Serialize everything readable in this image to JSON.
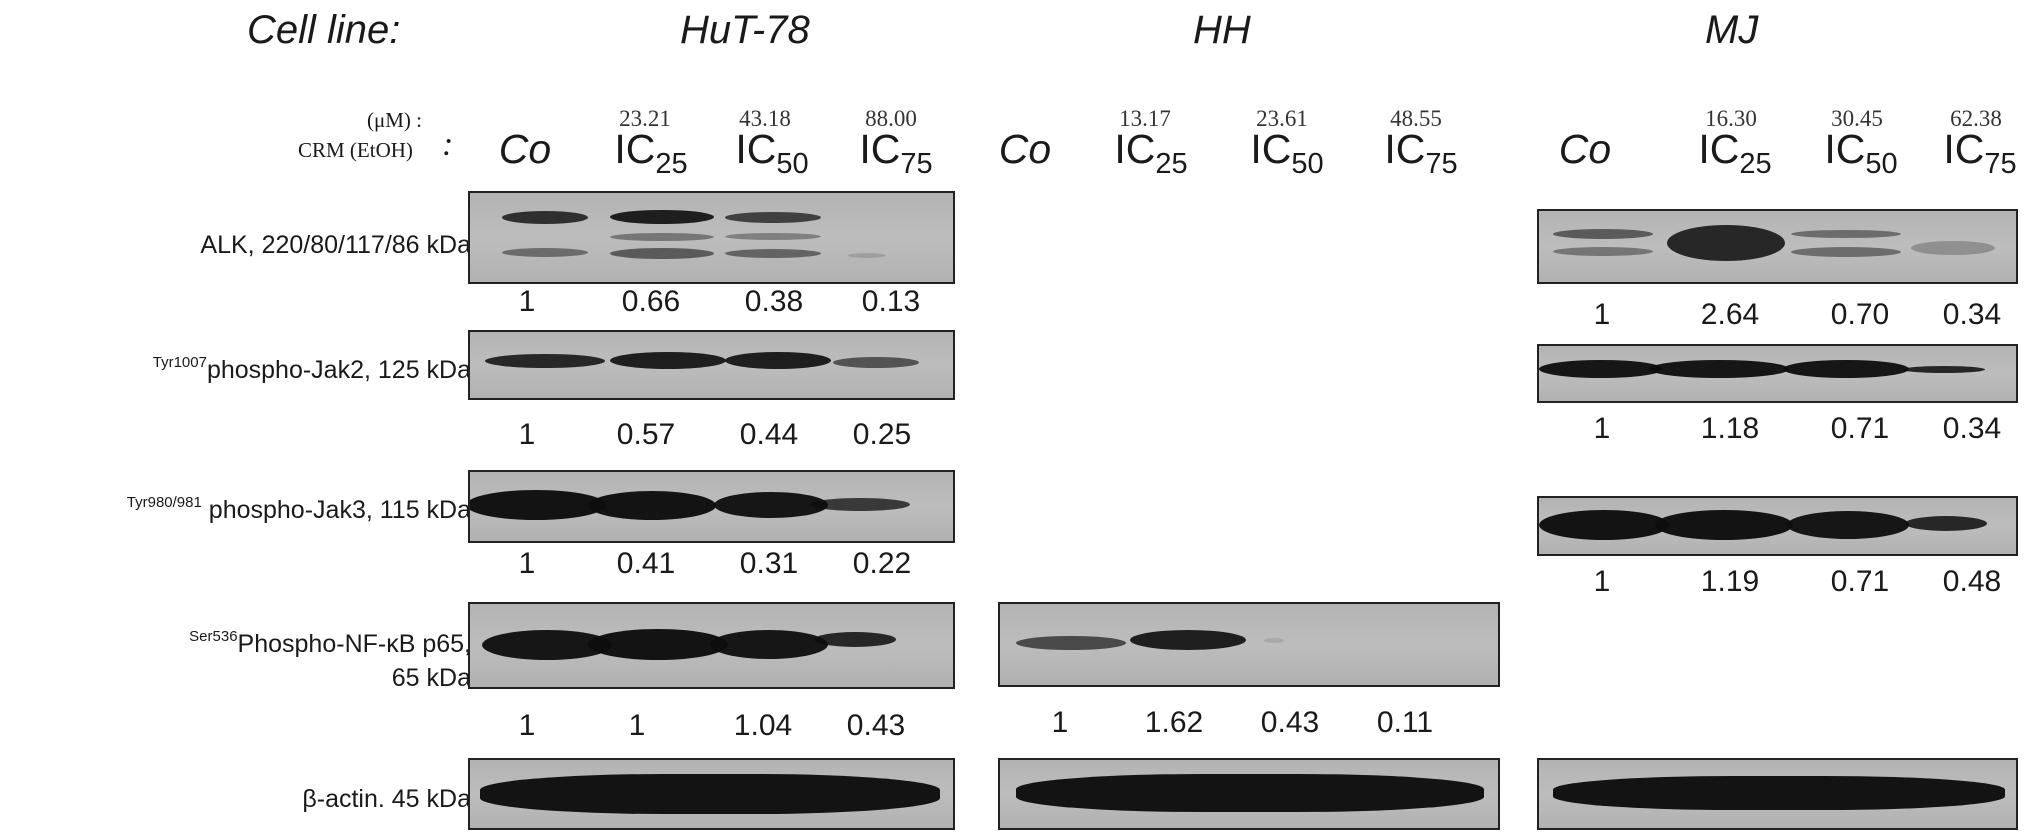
{
  "cell_line_label": "Cell line:",
  "units_label": "(μM) :",
  "treatment_label": "CRM (EtOH)",
  "treatment_colon": ":",
  "groups": [
    {
      "name": "HuT-78",
      "concentrations": [
        "23.21",
        "43.18",
        "88.00"
      ],
      "lanes": [
        {
          "main": "Co",
          "sub": ""
        },
        {
          "main": "IC",
          "sub": "25"
        },
        {
          "main": "IC",
          "sub": "50"
        },
        {
          "main": "IC",
          "sub": "75"
        }
      ],
      "values": {
        "alk": [
          "1",
          "0.66",
          "0.38",
          "0.13"
        ],
        "jak2": [
          "1",
          "0.57",
          "0.44",
          "0.25"
        ],
        "jak3": [
          "1",
          "0.41",
          "0.31",
          "0.22"
        ],
        "nfkb": [
          "1",
          "1",
          "1.04",
          "0.43"
        ]
      }
    },
    {
      "name": "HH",
      "concentrations": [
        "13.17",
        "23.61",
        "48.55"
      ],
      "lanes": [
        {
          "main": "Co",
          "sub": ""
        },
        {
          "main": "IC",
          "sub": "25"
        },
        {
          "main": "IC",
          "sub": "50"
        },
        {
          "main": "IC",
          "sub": "75"
        }
      ],
      "values": {
        "nfkb": [
          "1",
          "1.62",
          "0.43",
          "0.11"
        ]
      }
    },
    {
      "name": "MJ",
      "concentrations": [
        "16.30",
        "30.45",
        "62.38"
      ],
      "lanes": [
        {
          "main": "Co",
          "sub": ""
        },
        {
          "main": "IC",
          "sub": "25"
        },
        {
          "main": "IC",
          "sub": "50"
        },
        {
          "main": "IC",
          "sub": "75"
        }
      ],
      "values": {
        "alk": [
          "1",
          "2.64",
          "0.70",
          "0.34"
        ],
        "jak2": [
          "1",
          "1.18",
          "0.71",
          "0.34"
        ],
        "jak3": [
          "1",
          "1.19",
          "0.71",
          "0.48"
        ]
      }
    }
  ],
  "proteins": [
    {
      "key": "alk",
      "sup": "",
      "name": "ALK, 220/80/117/86 kDa",
      "name2": ""
    },
    {
      "key": "jak2",
      "sup": "Tyr1007",
      "name": "phospho-Jak2, 125 kDa",
      "name2": ""
    },
    {
      "key": "jak3",
      "sup": "Tyr980/981",
      "name": " phospho-Jak3, 115 kDa",
      "name2": ""
    },
    {
      "key": "nfkb",
      "sup": "Ser536",
      "name": "Phospho-NF-κB p65,",
      "name2": "65 kDa"
    },
    {
      "key": "actin",
      "sup": "",
      "name": "β-actin. 45 kDa",
      "name2": ""
    }
  ]
}
